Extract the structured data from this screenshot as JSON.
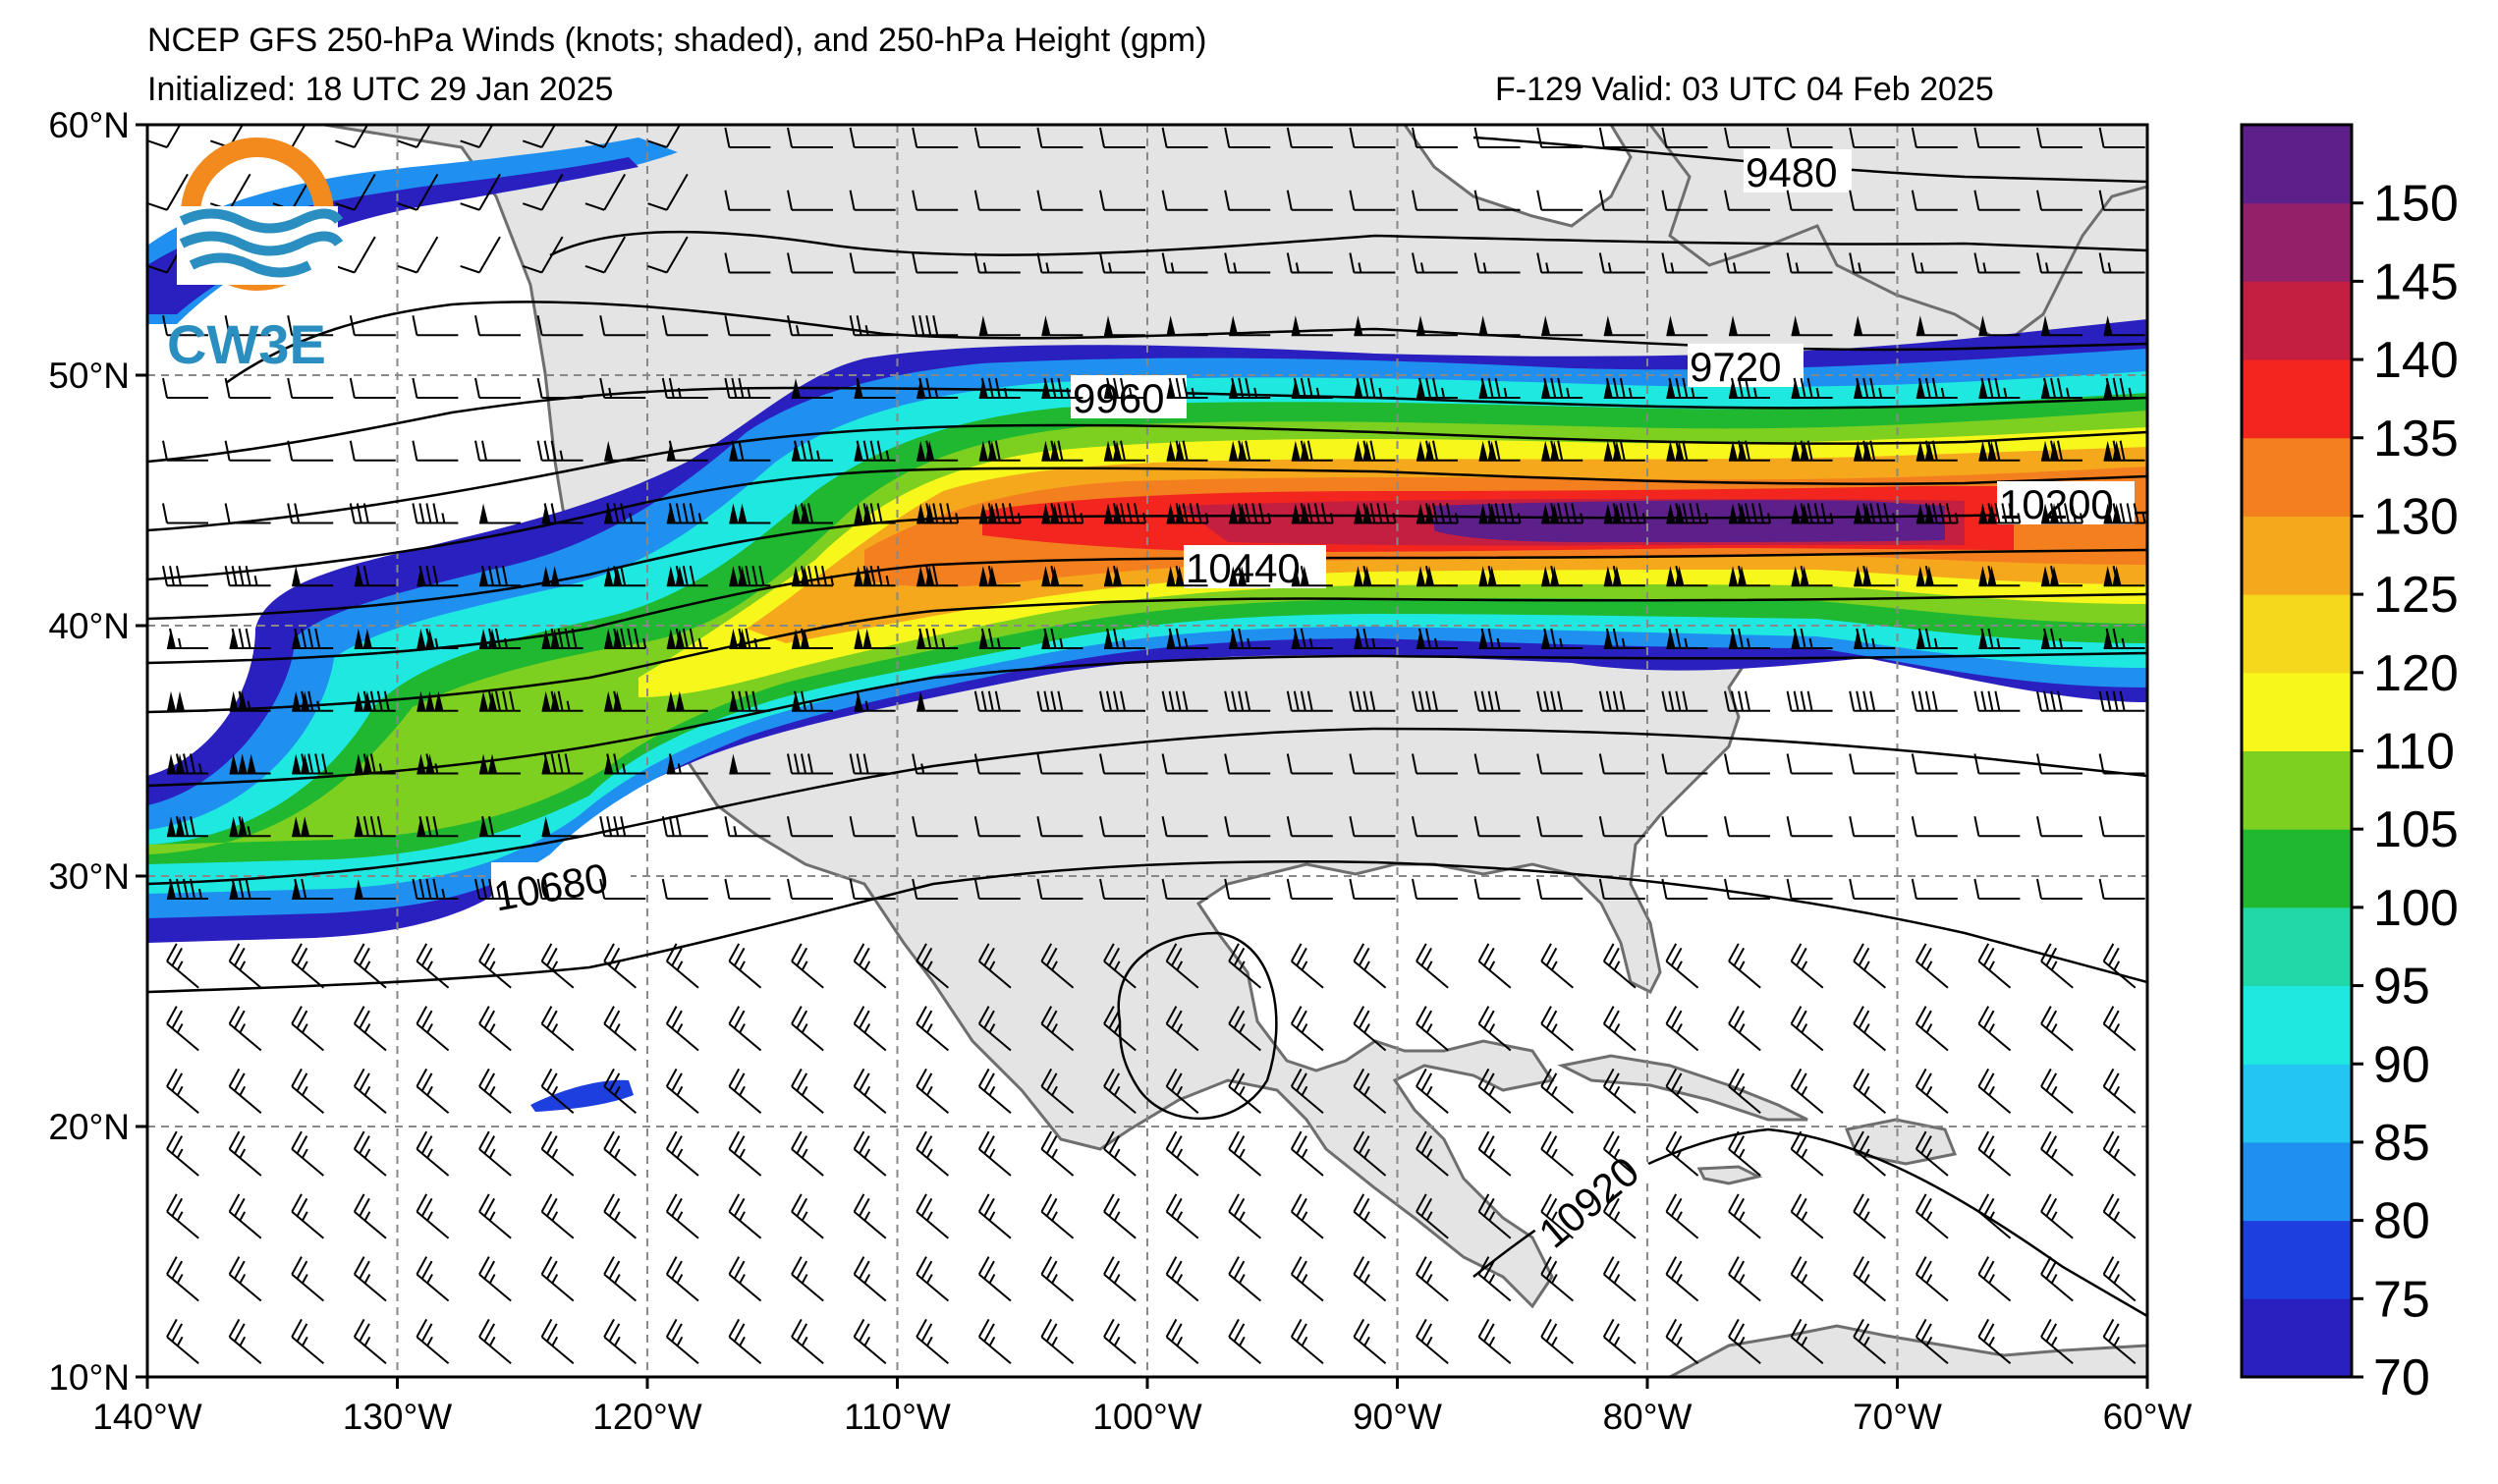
{
  "title": {
    "line1": "NCEP GFS 250-hPa Winds (knots; shaded), and 250-hPa Height (gpm)",
    "initialized": "Initialized: 18 UTC 29 Jan 2025",
    "valid": "F-129  Valid: 03 UTC 04 Feb 2025"
  },
  "logo": {
    "text": "CW3E",
    "icon": "cw3e-sun-wave-logo"
  },
  "axes": {
    "lon_ticks": [
      "140°W",
      "130°W",
      "120°W",
      "110°W",
      "100°W",
      "90°W",
      "80°W",
      "70°W",
      "60°W"
    ],
    "lat_ticks": [
      "60°N",
      "50°N",
      "40°N",
      "30°N",
      "20°N",
      "10°N"
    ]
  },
  "contour_labels": [
    "9480",
    "9720",
    "9960",
    "10200",
    "10440",
    "10680",
    "10920"
  ],
  "colorbar": {
    "ticks": [
      "150",
      "145",
      "140",
      "135",
      "130",
      "125",
      "120",
      "110",
      "105",
      "100",
      "95",
      "90",
      "85",
      "80",
      "75",
      "70"
    ],
    "colors": [
      "#2a1fbf",
      "#1e3fe0",
      "#1f8ff0",
      "#22c6f2",
      "#1fe8e0",
      "#22d8a8",
      "#20b830",
      "#7dd01f",
      "#f7f71c",
      "#f5d81c",
      "#f5a81c",
      "#f47f1e",
      "#f2261e",
      "#c41e40",
      "#94206a",
      "#5d1f8a"
    ]
  },
  "colors": {
    "land": "#e4e4e4",
    "ocean": "#ffffff",
    "coast": "#6e6e6e",
    "grid": "#888888"
  }
}
